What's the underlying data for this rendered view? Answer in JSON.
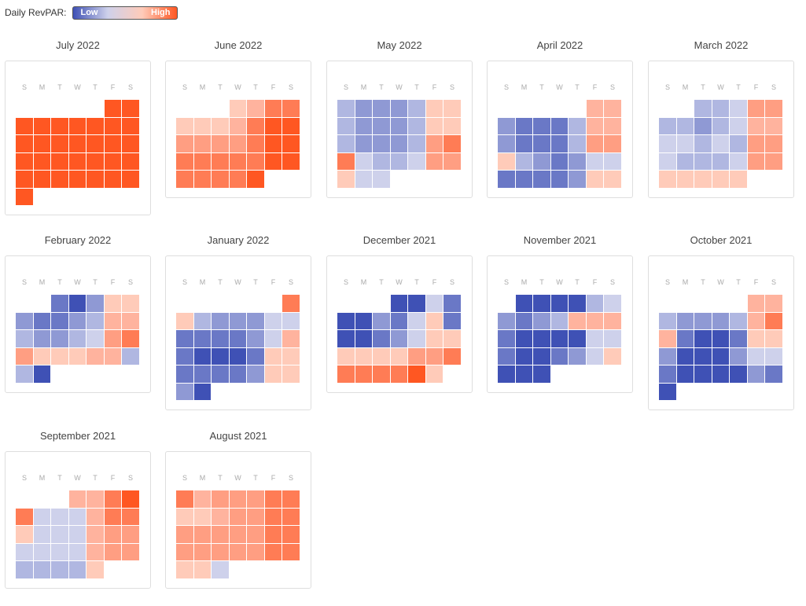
{
  "legend": {
    "label": "Daily RevPAR:",
    "low_label": "Low",
    "high_label": "High",
    "colors": [
      "#3f51b5",
      "#ced1eb",
      "#ffcbb9",
      "#ff5722"
    ]
  },
  "weekdays": [
    "S",
    "M",
    "T",
    "W",
    "T",
    "F",
    "S"
  ],
  "palette": [
    "#3f51b5",
    "#6a78c6",
    "#8f99d4",
    "#b0b7e1",
    "#ced1eb",
    "#ffcbb9",
    "#ffb39e",
    "#ff9e82",
    "#ff7c55",
    "#ff5722"
  ],
  "chart_data": {
    "type": "heatmap",
    "metric": "Daily RevPAR",
    "scale": "level 0 = Low (blue) … level 9 = High (orange)",
    "months": [
      {
        "title": "July 2022",
        "first_weekday": 5,
        "levels": [
          9,
          9,
          9,
          9,
          9,
          9,
          9,
          9,
          9,
          9,
          9,
          9,
          9,
          9,
          9,
          9,
          9,
          9,
          9,
          9,
          9,
          9,
          9,
          9,
          9,
          9,
          9,
          9,
          9,
          9,
          9
        ]
      },
      {
        "title": "June 2022",
        "first_weekday": 3,
        "levels": [
          5,
          6,
          8,
          8,
          5,
          5,
          5,
          6,
          8,
          9,
          9,
          7,
          7,
          7,
          7,
          8,
          9,
          9,
          8,
          8,
          8,
          8,
          8,
          9,
          9,
          8,
          8,
          8,
          8,
          9
        ]
      },
      {
        "title": "May 2022",
        "first_weekday": 0,
        "levels": [
          3,
          2,
          2,
          2,
          3,
          5,
          5,
          3,
          2,
          2,
          2,
          3,
          5,
          5,
          3,
          2,
          2,
          2,
          3,
          7,
          8,
          8,
          4,
          3,
          3,
          4,
          7,
          7,
          5,
          4,
          4
        ]
      },
      {
        "title": "April 2022",
        "first_weekday": 5,
        "levels": [
          6,
          6,
          2,
          1,
          1,
          1,
          3,
          6,
          6,
          2,
          1,
          1,
          1,
          3,
          7,
          7,
          5,
          3,
          2,
          1,
          2,
          4,
          4,
          1,
          1,
          1,
          1,
          2,
          5,
          5
        ]
      },
      {
        "title": "March 2022",
        "first_weekday": 2,
        "levels": [
          3,
          3,
          4,
          7,
          7,
          3,
          3,
          2,
          3,
          4,
          6,
          6,
          4,
          4,
          3,
          4,
          3,
          7,
          7,
          4,
          3,
          3,
          3,
          4,
          7,
          7,
          5,
          5,
          5,
          5,
          5
        ]
      },
      {
        "title": "February 2022",
        "first_weekday": 2,
        "levels": [
          1,
          0,
          2,
          5,
          5,
          2,
          1,
          1,
          2,
          3,
          6,
          6,
          3,
          2,
          2,
          3,
          4,
          7,
          8,
          7,
          5,
          5,
          5,
          6,
          6,
          3,
          3,
          0
        ]
      },
      {
        "title": "January 2022",
        "first_weekday": 6,
        "levels": [
          8,
          5,
          3,
          2,
          2,
          2,
          4,
          4,
          1,
          1,
          1,
          1,
          2,
          4,
          6,
          1,
          0,
          0,
          0,
          1,
          5,
          5,
          1,
          1,
          1,
          1,
          2,
          5,
          5,
          2,
          0
        ]
      },
      {
        "title": "December 2021",
        "first_weekday": 3,
        "levels": [
          0,
          0,
          4,
          1,
          0,
          0,
          2,
          1,
          4,
          5,
          1,
          0,
          0,
          1,
          2,
          4,
          5,
          5,
          5,
          5,
          5,
          5,
          7,
          7,
          8,
          8,
          8,
          8,
          8,
          9,
          5
        ]
      },
      {
        "title": "November 2021",
        "first_weekday": 1,
        "levels": [
          0,
          0,
          0,
          0,
          3,
          4,
          2,
          1,
          2,
          3,
          6,
          6,
          6,
          1,
          0,
          0,
          0,
          0,
          4,
          4,
          1,
          0,
          0,
          1,
          2,
          4,
          5,
          0,
          0,
          0
        ]
      },
      {
        "title": "October 2021",
        "first_weekday": 5,
        "levels": [
          6,
          6,
          3,
          2,
          2,
          2,
          3,
          6,
          8,
          6,
          1,
          0,
          0,
          1,
          5,
          5,
          2,
          0,
          0,
          0,
          2,
          4,
          4,
          1,
          0,
          0,
          0,
          0,
          2,
          1,
          0
        ]
      },
      {
        "title": "September 2021",
        "first_weekday": 3,
        "levels": [
          6,
          6,
          8,
          9,
          8,
          4,
          4,
          4,
          6,
          8,
          8,
          5,
          4,
          4,
          4,
          6,
          7,
          7,
          4,
          4,
          4,
          4,
          6,
          7,
          7,
          3,
          3,
          3,
          3,
          5
        ]
      },
      {
        "title": "August 2021",
        "first_weekday": 0,
        "levels": [
          8,
          6,
          7,
          7,
          7,
          8,
          8,
          5,
          5,
          6,
          7,
          7,
          8,
          8,
          7,
          7,
          7,
          7,
          7,
          8,
          8,
          7,
          7,
          7,
          7,
          7,
          8,
          8,
          5,
          5,
          4
        ]
      }
    ]
  }
}
